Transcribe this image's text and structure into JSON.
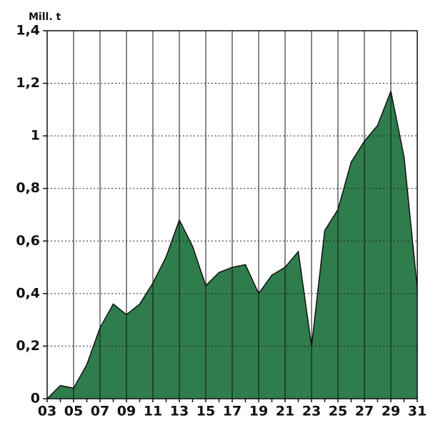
{
  "chart_data": {
    "type": "area",
    "y_label": "Mill. t",
    "categories": [
      "03",
      null,
      "05",
      null,
      "07",
      null,
      "09",
      null,
      "11",
      null,
      "13",
      null,
      "15",
      null,
      "17",
      null,
      "19",
      null,
      "21",
      null,
      "23",
      null,
      "25",
      null,
      "27",
      null,
      "29",
      null,
      "31"
    ],
    "values": [
      0,
      0.05,
      0.04,
      0.13,
      0.27,
      0.36,
      0.32,
      0.36,
      0.44,
      0.54,
      0.68,
      0.58,
      0.43,
      0.48,
      0.5,
      0.51,
      0.4,
      0.47,
      0.5,
      0.56,
      0.2,
      0.64,
      0.72,
      0.9,
      0.98,
      1.04,
      1.17,
      0.92,
      0.42
    ],
    "color": "#2f7d4c",
    "ylim": [
      0,
      1.4
    ],
    "yticks": [
      0,
      {
        "value": 0.2,
        "label": "0,2"
      },
      {
        "value": 0.4,
        "label": "0,4"
      },
      {
        "value": 0.6,
        "label": "0,6"
      },
      {
        "value": 0.8,
        "label": "0,8"
      },
      1,
      {
        "value": 1.2,
        "label": "1,2"
      },
      {
        "value": 1.4,
        "label": "1,4"
      }
    ],
    "grid": true
  }
}
